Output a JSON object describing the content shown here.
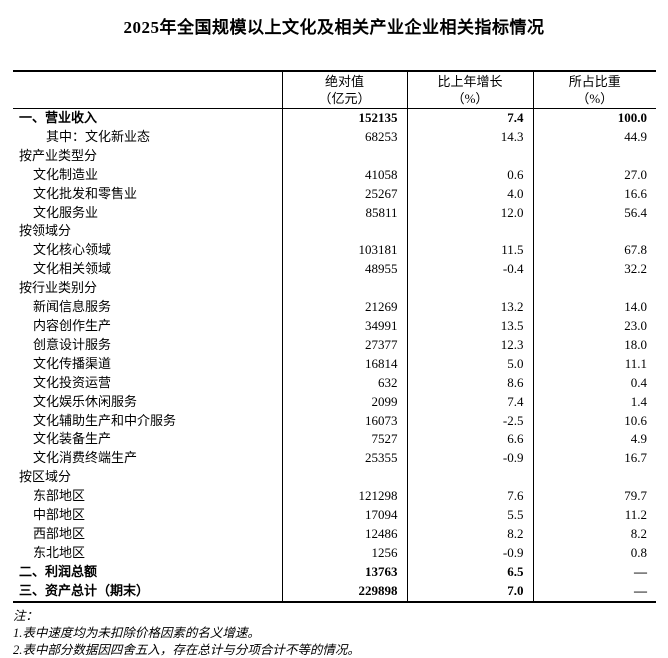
{
  "title": "2025年全国规模以上文化及相关产业企业相关指标情况",
  "table": {
    "headers": [
      {
        "line1": "绝对值",
        "line2": "（亿元）"
      },
      {
        "line1": "比上年增长",
        "line2": "（%）"
      },
      {
        "line1": "所占比重",
        "line2": "（%）"
      }
    ],
    "rows": [
      {
        "label": "一、营业收入",
        "indent": 0,
        "bold": true,
        "abs": "152135",
        "growth": "7.4",
        "share": "100.0"
      },
      {
        "label": "其中：文化新业态",
        "indent": 2,
        "bold": false,
        "abs": "68253",
        "growth": "14.3",
        "share": "44.9"
      },
      {
        "label": "按产业类型分",
        "indent": 0,
        "bold": false,
        "abs": "",
        "growth": "",
        "share": ""
      },
      {
        "label": "文化制造业",
        "indent": 1,
        "bold": false,
        "abs": "41058",
        "growth": "0.6",
        "share": "27.0"
      },
      {
        "label": "文化批发和零售业",
        "indent": 1,
        "bold": false,
        "abs": "25267",
        "growth": "4.0",
        "share": "16.6"
      },
      {
        "label": "文化服务业",
        "indent": 1,
        "bold": false,
        "abs": "85811",
        "growth": "12.0",
        "share": "56.4"
      },
      {
        "label": "按领域分",
        "indent": 0,
        "bold": false,
        "abs": "",
        "growth": "",
        "share": ""
      },
      {
        "label": "文化核心领域",
        "indent": 1,
        "bold": false,
        "abs": "103181",
        "growth": "11.5",
        "share": "67.8"
      },
      {
        "label": "文化相关领域",
        "indent": 1,
        "bold": false,
        "abs": "48955",
        "growth": "-0.4",
        "share": "32.2"
      },
      {
        "label": "按行业类别分",
        "indent": 0,
        "bold": false,
        "abs": "",
        "growth": "",
        "share": ""
      },
      {
        "label": "新闻信息服务",
        "indent": 1,
        "bold": false,
        "abs": "21269",
        "growth": "13.2",
        "share": "14.0"
      },
      {
        "label": "内容创作生产",
        "indent": 1,
        "bold": false,
        "abs": "34991",
        "growth": "13.5",
        "share": "23.0"
      },
      {
        "label": "创意设计服务",
        "indent": 1,
        "bold": false,
        "abs": "27377",
        "growth": "12.3",
        "share": "18.0"
      },
      {
        "label": "文化传播渠道",
        "indent": 1,
        "bold": false,
        "abs": "16814",
        "growth": "5.0",
        "share": "11.1"
      },
      {
        "label": "文化投资运营",
        "indent": 1,
        "bold": false,
        "abs": "632",
        "growth": "8.6",
        "share": "0.4"
      },
      {
        "label": "文化娱乐休闲服务",
        "indent": 1,
        "bold": false,
        "abs": "2099",
        "growth": "7.4",
        "share": "1.4"
      },
      {
        "label": "文化辅助生产和中介服务",
        "indent": 1,
        "bold": false,
        "abs": "16073",
        "growth": "-2.5",
        "share": "10.6"
      },
      {
        "label": "文化装备生产",
        "indent": 1,
        "bold": false,
        "abs": "7527",
        "growth": "6.6",
        "share": "4.9"
      },
      {
        "label": "文化消费终端生产",
        "indent": 1,
        "bold": false,
        "abs": "25355",
        "growth": "-0.9",
        "share": "16.7"
      },
      {
        "label": "按区域分",
        "indent": 0,
        "bold": false,
        "abs": "",
        "growth": "",
        "share": ""
      },
      {
        "label": "东部地区",
        "indent": 1,
        "bold": false,
        "abs": "121298",
        "growth": "7.6",
        "share": "79.7"
      },
      {
        "label": "中部地区",
        "indent": 1,
        "bold": false,
        "abs": "17094",
        "growth": "5.5",
        "share": "11.2"
      },
      {
        "label": "西部地区",
        "indent": 1,
        "bold": false,
        "abs": "12486",
        "growth": "8.2",
        "share": "8.2"
      },
      {
        "label": "东北地区",
        "indent": 1,
        "bold": false,
        "abs": "1256",
        "growth": "-0.9",
        "share": "0.8"
      },
      {
        "label": "二、利润总额",
        "indent": 0,
        "bold": true,
        "abs": "13763",
        "growth": "6.5",
        "share": "—"
      },
      {
        "label": "三、资产总计（期末）",
        "indent": 0,
        "bold": true,
        "abs": "229898",
        "growth": "7.0",
        "share": "—"
      }
    ]
  },
  "notes": {
    "label": "注：",
    "items": [
      "1.表中速度均为未扣除价格因素的名义增速。",
      "2.表中部分数据因四舍五入，存在总计与分项合计不等的情况。"
    ]
  }
}
